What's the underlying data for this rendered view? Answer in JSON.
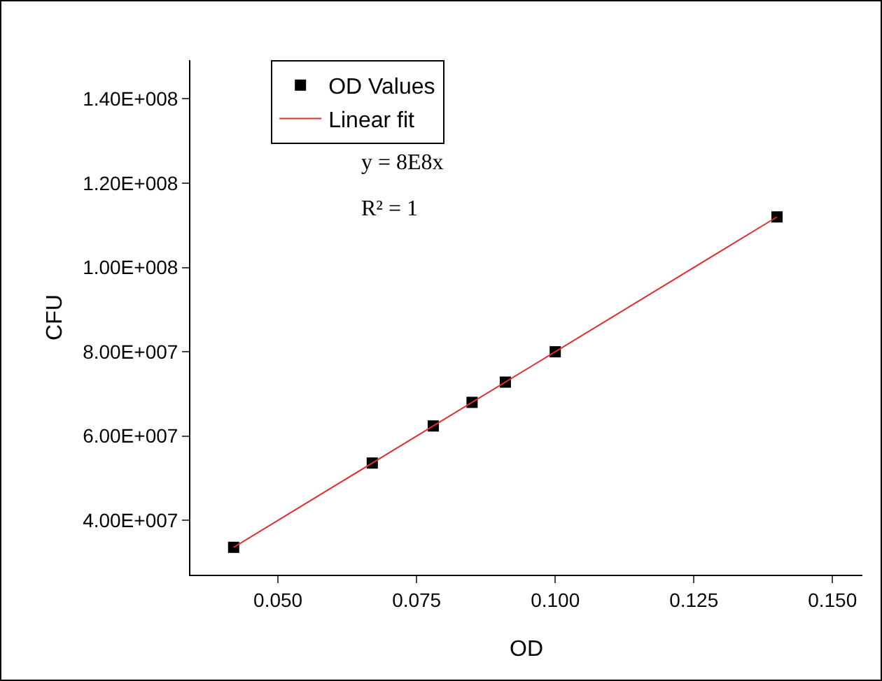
{
  "chart_data": {
    "type": "scatter",
    "xlabel": "OD",
    "ylabel": "CFU",
    "series": [
      {
        "name": "OD Values",
        "color": "#000000",
        "marker": "square",
        "x": [
          0.042,
          0.067,
          0.078,
          0.085,
          0.091,
          0.1,
          0.14
        ],
        "values": [
          33600000,
          53600000,
          62400000,
          68000000,
          72800000,
          80000000,
          112000000
        ]
      },
      {
        "name": "Linear fit",
        "type": "line",
        "color": "#e03030",
        "marker": "none",
        "line_style": "solid",
        "x": [
          0.042,
          0.14
        ],
        "values": [
          33600000,
          112000000
        ]
      }
    ],
    "xlim": [
      0.0342,
      0.1554
    ],
    "ylim": [
      27100000,
      149200000
    ],
    "xticks": [
      {
        "value": 0.05,
        "label": "0.050"
      },
      {
        "value": 0.075,
        "label": "0.075"
      },
      {
        "value": 0.1,
        "label": "0.100"
      },
      {
        "value": 0.125,
        "label": "0.125"
      },
      {
        "value": 0.15,
        "label": "0.150"
      }
    ],
    "yticks": [
      {
        "value": 40000000,
        "label": "4.00E+007"
      },
      {
        "value": 60000000,
        "label": "6.00E+007"
      },
      {
        "value": 80000000,
        "label": "8.00E+007"
      },
      {
        "value": 100000000,
        "label": "1.00E+008"
      },
      {
        "value": 120000000,
        "label": "1.20E+008"
      },
      {
        "value": 140000000,
        "label": "1.40E+008"
      }
    ],
    "annotations": [
      "y = 8E8x",
      "R² = 1"
    ],
    "grid": false,
    "legend": "top left"
  }
}
